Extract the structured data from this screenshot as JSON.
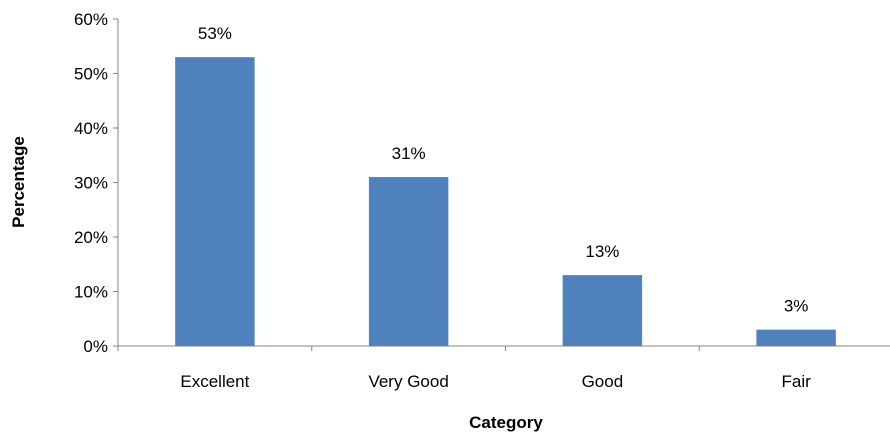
{
  "chart_data": {
    "type": "bar",
    "title": "",
    "xlabel": "Category",
    "ylabel": "Percentage",
    "categories": [
      "Excellent",
      "Very Good",
      "Good",
      "Fair"
    ],
    "values": [
      53,
      31,
      13,
      3
    ],
    "value_labels": [
      "53%",
      "31%",
      "13%",
      "3%"
    ],
    "ylim": [
      0,
      60
    ],
    "yticks": [
      0,
      10,
      20,
      30,
      40,
      50,
      60
    ],
    "ytick_labels": [
      "0%",
      "10%",
      "20%",
      "30%",
      "40%",
      "50%",
      "60%"
    ],
    "bar_color": "#4f81bd",
    "grid": false,
    "legend": "none"
  }
}
